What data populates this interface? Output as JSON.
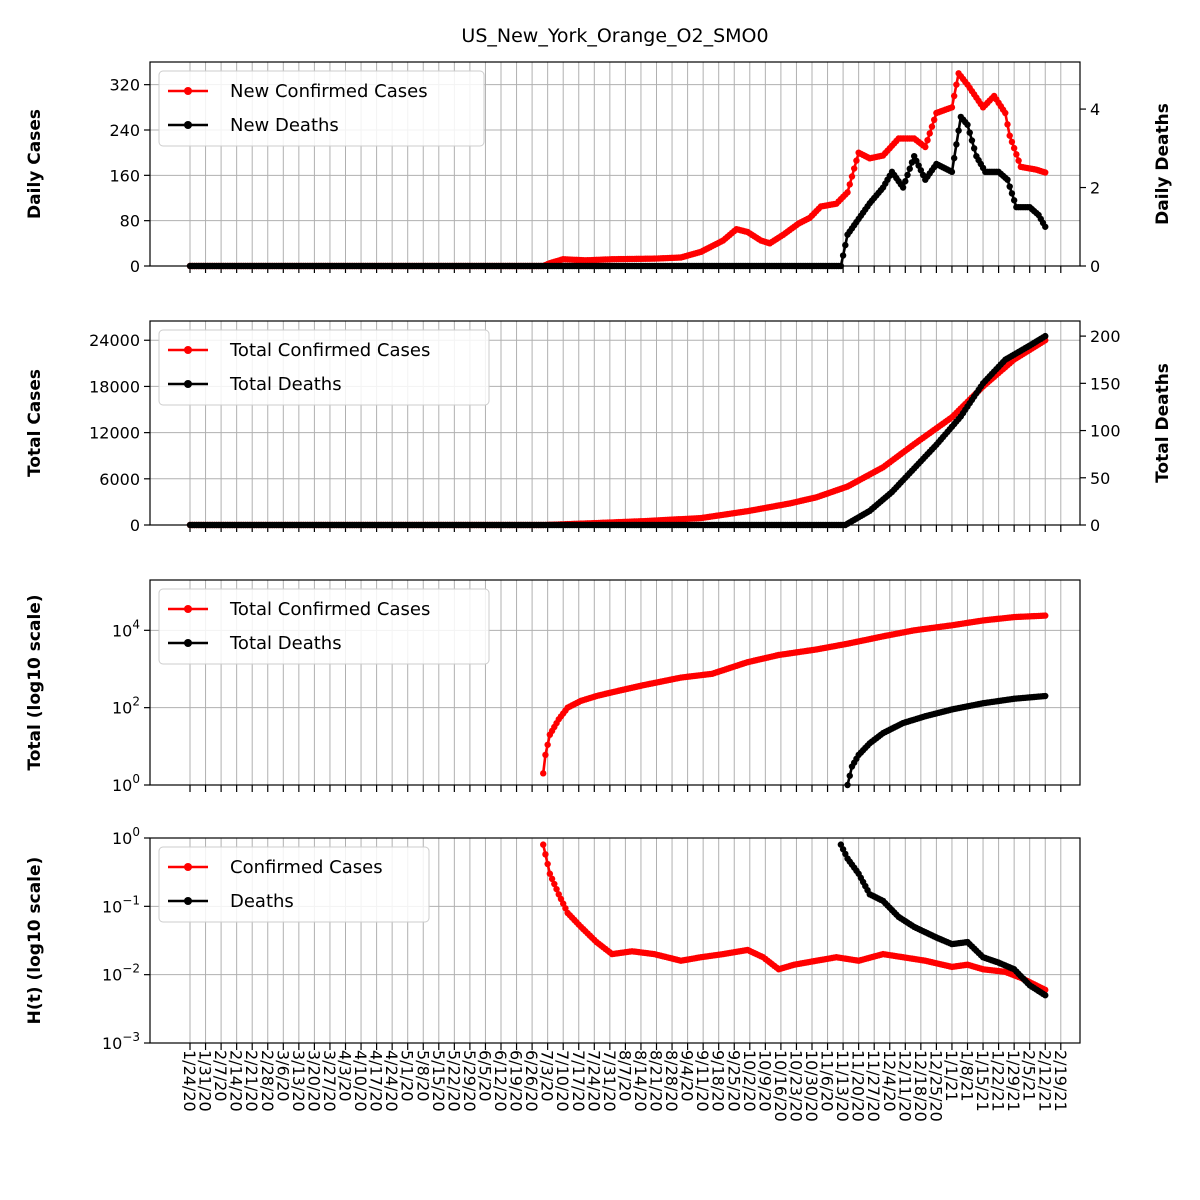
{
  "title": "US_New_York_Orange_O2_SMO0",
  "colors": {
    "cases": "#ff0000",
    "deaths": "#000000",
    "grid": "#b0b0b0"
  },
  "date_ticks": [
    "1/24/20",
    "1/31/20",
    "2/7/20",
    "2/14/20",
    "2/21/20",
    "2/28/20",
    "3/6/20",
    "3/13/20",
    "3/20/20",
    "3/27/20",
    "4/3/20",
    "4/10/20",
    "4/17/20",
    "4/24/20",
    "5/1/20",
    "5/8/20",
    "5/15/20",
    "5/22/20",
    "5/29/20",
    "6/5/20",
    "6/12/20",
    "6/19/20",
    "6/26/20",
    "7/3/20",
    "7/10/20",
    "7/17/20",
    "7/24/20",
    "7/31/20",
    "8/7/20",
    "8/14/20",
    "8/21/20",
    "8/28/20",
    "9/4/20",
    "9/11/20",
    "9/18/20",
    "9/25/20",
    "10/2/20",
    "10/9/20",
    "10/16/20",
    "10/23/20",
    "10/30/20",
    "11/6/20",
    "11/13/20",
    "11/20/20",
    "11/27/20",
    "12/4/20",
    "12/11/20",
    "12/18/20",
    "12/25/20",
    "1/1/21",
    "1/8/21",
    "1/15/21",
    "1/22/21",
    "1/29/21",
    "2/5/21",
    "2/12/21",
    "2/19/21"
  ],
  "chart_data": [
    {
      "type": "line",
      "ylabel": "Daily Cases",
      "ylabel_right": "Daily Deaths",
      "ylim": [
        0,
        360
      ],
      "yticks": [
        "0",
        "80",
        "160",
        "240",
        "320"
      ],
      "ylim_right": [
        0,
        5.2
      ],
      "yticks_right": [
        "0",
        "2",
        "4"
      ],
      "legend": {
        "placement": "upper-left",
        "entries": [
          "New Confirmed Cases",
          "New Deaths"
        ]
      },
      "series": [
        {
          "name": "New Confirmed Cases",
          "axis": "left",
          "points": [
            [
              "1/24/20",
              0
            ],
            [
              "7/1/20",
              0
            ],
            [
              "7/4/20",
              5
            ],
            [
              "7/10/20",
              12
            ],
            [
              "7/20/20",
              10
            ],
            [
              "8/1/20",
              12
            ],
            [
              "8/20/20",
              13
            ],
            [
              "9/1/20",
              15
            ],
            [
              "9/10/20",
              25
            ],
            [
              "9/20/20",
              45
            ],
            [
              "9/26/20",
              65
            ],
            [
              "10/1/20",
              60
            ],
            [
              "10/7/20",
              45
            ],
            [
              "10/11/20",
              40
            ],
            [
              "10/17/20",
              55
            ],
            [
              "10/24/20",
              75
            ],
            [
              "10/29/20",
              85
            ],
            [
              "11/3/20",
              105
            ],
            [
              "11/10/20",
              110
            ],
            [
              "11/15/20",
              130
            ],
            [
              "11/20/20",
              200
            ],
            [
              "11/25/20",
              190
            ],
            [
              "12/1/20",
              195
            ],
            [
              "12/8/20",
              225
            ],
            [
              "12/15/20",
              225
            ],
            [
              "12/20/20",
              210
            ],
            [
              "12/25/20",
              270
            ],
            [
              "1/1/21",
              280
            ],
            [
              "1/4/21",
              340
            ],
            [
              "1/8/21",
              320
            ],
            [
              "1/15/21",
              280
            ],
            [
              "1/20/21",
              300
            ],
            [
              "1/25/21",
              270
            ],
            [
              "1/27/21",
              230
            ],
            [
              "2/1/21",
              175
            ],
            [
              "2/8/21",
              170
            ],
            [
              "2/12/21",
              165
            ]
          ]
        },
        {
          "name": "New Deaths",
          "axis": "right",
          "points": [
            [
              "1/24/20",
              0
            ],
            [
              "11/12/20",
              0
            ],
            [
              "11/15/20",
              0.8
            ],
            [
              "11/20/20",
              1.2
            ],
            [
              "11/25/20",
              1.6
            ],
            [
              "12/1/20",
              2.0
            ],
            [
              "12/5/20",
              2.4
            ],
            [
              "12/10/20",
              2.0
            ],
            [
              "12/15/20",
              2.8
            ],
            [
              "12/20/20",
              2.2
            ],
            [
              "12/25/20",
              2.6
            ],
            [
              "1/1/21",
              2.4
            ],
            [
              "1/5/21",
              3.8
            ],
            [
              "1/8/21",
              3.6
            ],
            [
              "1/12/21",
              2.8
            ],
            [
              "1/16/21",
              2.4
            ],
            [
              "1/22/21",
              2.4
            ],
            [
              "1/26/21",
              2.2
            ],
            [
              "1/30/21",
              1.5
            ],
            [
              "2/5/21",
              1.5
            ],
            [
              "2/9/21",
              1.3
            ],
            [
              "2/12/21",
              1.0
            ]
          ]
        }
      ]
    },
    {
      "type": "line",
      "ylabel": "Total Cases",
      "ylabel_right": "Total Deaths",
      "ylim": [
        0,
        26500
      ],
      "yticks": [
        "0",
        "6000",
        "12000",
        "18000",
        "24000"
      ],
      "ylim_right": [
        0,
        216
      ],
      "yticks_right": [
        "0",
        "50",
        "100",
        "150",
        "200"
      ],
      "legend": {
        "placement": "upper-left",
        "entries": [
          "Total Confirmed Cases",
          "Total Deaths"
        ]
      },
      "series": [
        {
          "name": "Total Confirmed Cases",
          "axis": "left",
          "points": [
            [
              "1/24/20",
              0
            ],
            [
              "7/1/20",
              0
            ],
            [
              "7/20/20",
              200
            ],
            [
              "8/15/20",
              500
            ],
            [
              "9/10/20",
              900
            ],
            [
              "10/1/20",
              1800
            ],
            [
              "10/20/20",
              2800
            ],
            [
              "11/1/20",
              3600
            ],
            [
              "11/15/20",
              5000
            ],
            [
              "12/1/20",
              7500
            ],
            [
              "12/15/20",
              10500
            ],
            [
              "1/1/21",
              14000
            ],
            [
              "1/15/21",
              18000
            ],
            [
              "1/29/21",
              21500
            ],
            [
              "2/12/21",
              24000
            ]
          ]
        },
        {
          "name": "Total Deaths",
          "axis": "right",
          "points": [
            [
              "1/24/20",
              0
            ],
            [
              "11/14/20",
              0
            ],
            [
              "11/25/20",
              15
            ],
            [
              "12/5/20",
              35
            ],
            [
              "12/15/20",
              60
            ],
            [
              "12/25/20",
              85
            ],
            [
              "1/5/21",
              115
            ],
            [
              "1/15/21",
              150
            ],
            [
              "1/25/21",
              175
            ],
            [
              "2/5/21",
              190
            ],
            [
              "2/12/21",
              200
            ]
          ]
        }
      ]
    },
    {
      "type": "line",
      "ylabel": "Total (log10 scale)",
      "yscale": "log",
      "ylim": [
        1,
        200000
      ],
      "yticks": [
        {
          "base": "10",
          "exp": "0"
        },
        {
          "base": "10",
          "exp": "2"
        },
        {
          "base": "10",
          "exp": "4"
        }
      ],
      "legend": {
        "placement": "upper-left",
        "entries": [
          "Total Confirmed Cases",
          "Total Deaths"
        ]
      },
      "series": [
        {
          "name": "Total Confirmed Cases",
          "points": [
            [
              "7/1/20",
              2
            ],
            [
              "7/2/20",
              6
            ],
            [
              "7/4/20",
              20
            ],
            [
              "7/8/20",
              50
            ],
            [
              "7/12/20",
              100
            ],
            [
              "7/18/20",
              150
            ],
            [
              "7/25/20",
              200
            ],
            [
              "8/1/20",
              250
            ],
            [
              "8/15/20",
              380
            ],
            [
              "9/1/20",
              600
            ],
            [
              "9/15/20",
              750
            ],
            [
              "10/1/20",
              1500
            ],
            [
              "10/15/20",
              2300
            ],
            [
              "11/1/20",
              3200
            ],
            [
              "11/15/20",
              4500
            ],
            [
              "12/1/20",
              7000
            ],
            [
              "12/15/20",
              10000
            ],
            [
              "1/1/21",
              13500
            ],
            [
              "1/15/21",
              18000
            ],
            [
              "1/29/21",
              22000
            ],
            [
              "2/12/21",
              24000
            ]
          ]
        },
        {
          "name": "Total Deaths",
          "points": [
            [
              "11/15/20",
              1
            ],
            [
              "11/17/20",
              3
            ],
            [
              "11/20/20",
              6
            ],
            [
              "11/25/20",
              12
            ],
            [
              "12/1/20",
              22
            ],
            [
              "12/10/20",
              40
            ],
            [
              "12/20/20",
              60
            ],
            [
              "1/1/21",
              90
            ],
            [
              "1/15/21",
              130
            ],
            [
              "1/29/21",
              170
            ],
            [
              "2/12/21",
              200
            ]
          ]
        }
      ]
    },
    {
      "type": "line",
      "ylabel": "H(t) (log10 scale)",
      "yscale": "log",
      "ylim": [
        0.001,
        1
      ],
      "yticks": [
        {
          "base": "10",
          "exp": "−3"
        },
        {
          "base": "10",
          "exp": "−2"
        },
        {
          "base": "10",
          "exp": "−1"
        },
        {
          "base": "10",
          "exp": "0"
        }
      ],
      "yticks_top_label": "10",
      "legend": {
        "placement": "upper-left",
        "entries": [
          "Confirmed Cases",
          "Deaths"
        ]
      },
      "series": [
        {
          "name": "Confirmed Cases",
          "points": [
            [
              "7/1/20",
              0.8
            ],
            [
              "7/4/20",
              0.3
            ],
            [
              "7/8/20",
              0.15
            ],
            [
              "7/12/20",
              0.08
            ],
            [
              "7/18/20",
              0.05
            ],
            [
              "7/25/20",
              0.03
            ],
            [
              "8/1/20",
              0.02
            ],
            [
              "8/10/20",
              0.022
            ],
            [
              "8/20/20",
              0.02
            ],
            [
              "9/1/20",
              0.016
            ],
            [
              "9/10/20",
              0.018
            ],
            [
              "9/20/20",
              0.02
            ],
            [
              "10/1/20",
              0.023
            ],
            [
              "10/8/20",
              0.018
            ],
            [
              "10/15/20",
              0.012
            ],
            [
              "10/22/20",
              0.014
            ],
            [
              "11/1/20",
              0.016
            ],
            [
              "11/10/20",
              0.018
            ],
            [
              "11/20/20",
              0.016
            ],
            [
              "12/1/20",
              0.02
            ],
            [
              "12/10/20",
              0.018
            ],
            [
              "12/20/20",
              0.016
            ],
            [
              "1/1/21",
              0.013
            ],
            [
              "1/8/21",
              0.014
            ],
            [
              "1/15/21",
              0.012
            ],
            [
              "1/25/21",
              0.011
            ],
            [
              "2/1/21",
              0.009
            ],
            [
              "2/12/21",
              0.006
            ]
          ]
        },
        {
          "name": "Deaths",
          "points": [
            [
              "11/12/20",
              0.8
            ],
            [
              "11/15/20",
              0.5
            ],
            [
              "11/20/20",
              0.3
            ],
            [
              "11/25/20",
              0.15
            ],
            [
              "12/1/20",
              0.12
            ],
            [
              "12/8/20",
              0.07
            ],
            [
              "12/15/20",
              0.05
            ],
            [
              "12/25/20",
              0.035
            ],
            [
              "1/1/21",
              0.028
            ],
            [
              "1/8/21",
              0.03
            ],
            [
              "1/15/21",
              0.018
            ],
            [
              "1/22/21",
              0.015
            ],
            [
              "1/29/21",
              0.012
            ],
            [
              "2/5/21",
              0.007
            ],
            [
              "2/12/21",
              0.005
            ]
          ]
        }
      ]
    }
  ]
}
